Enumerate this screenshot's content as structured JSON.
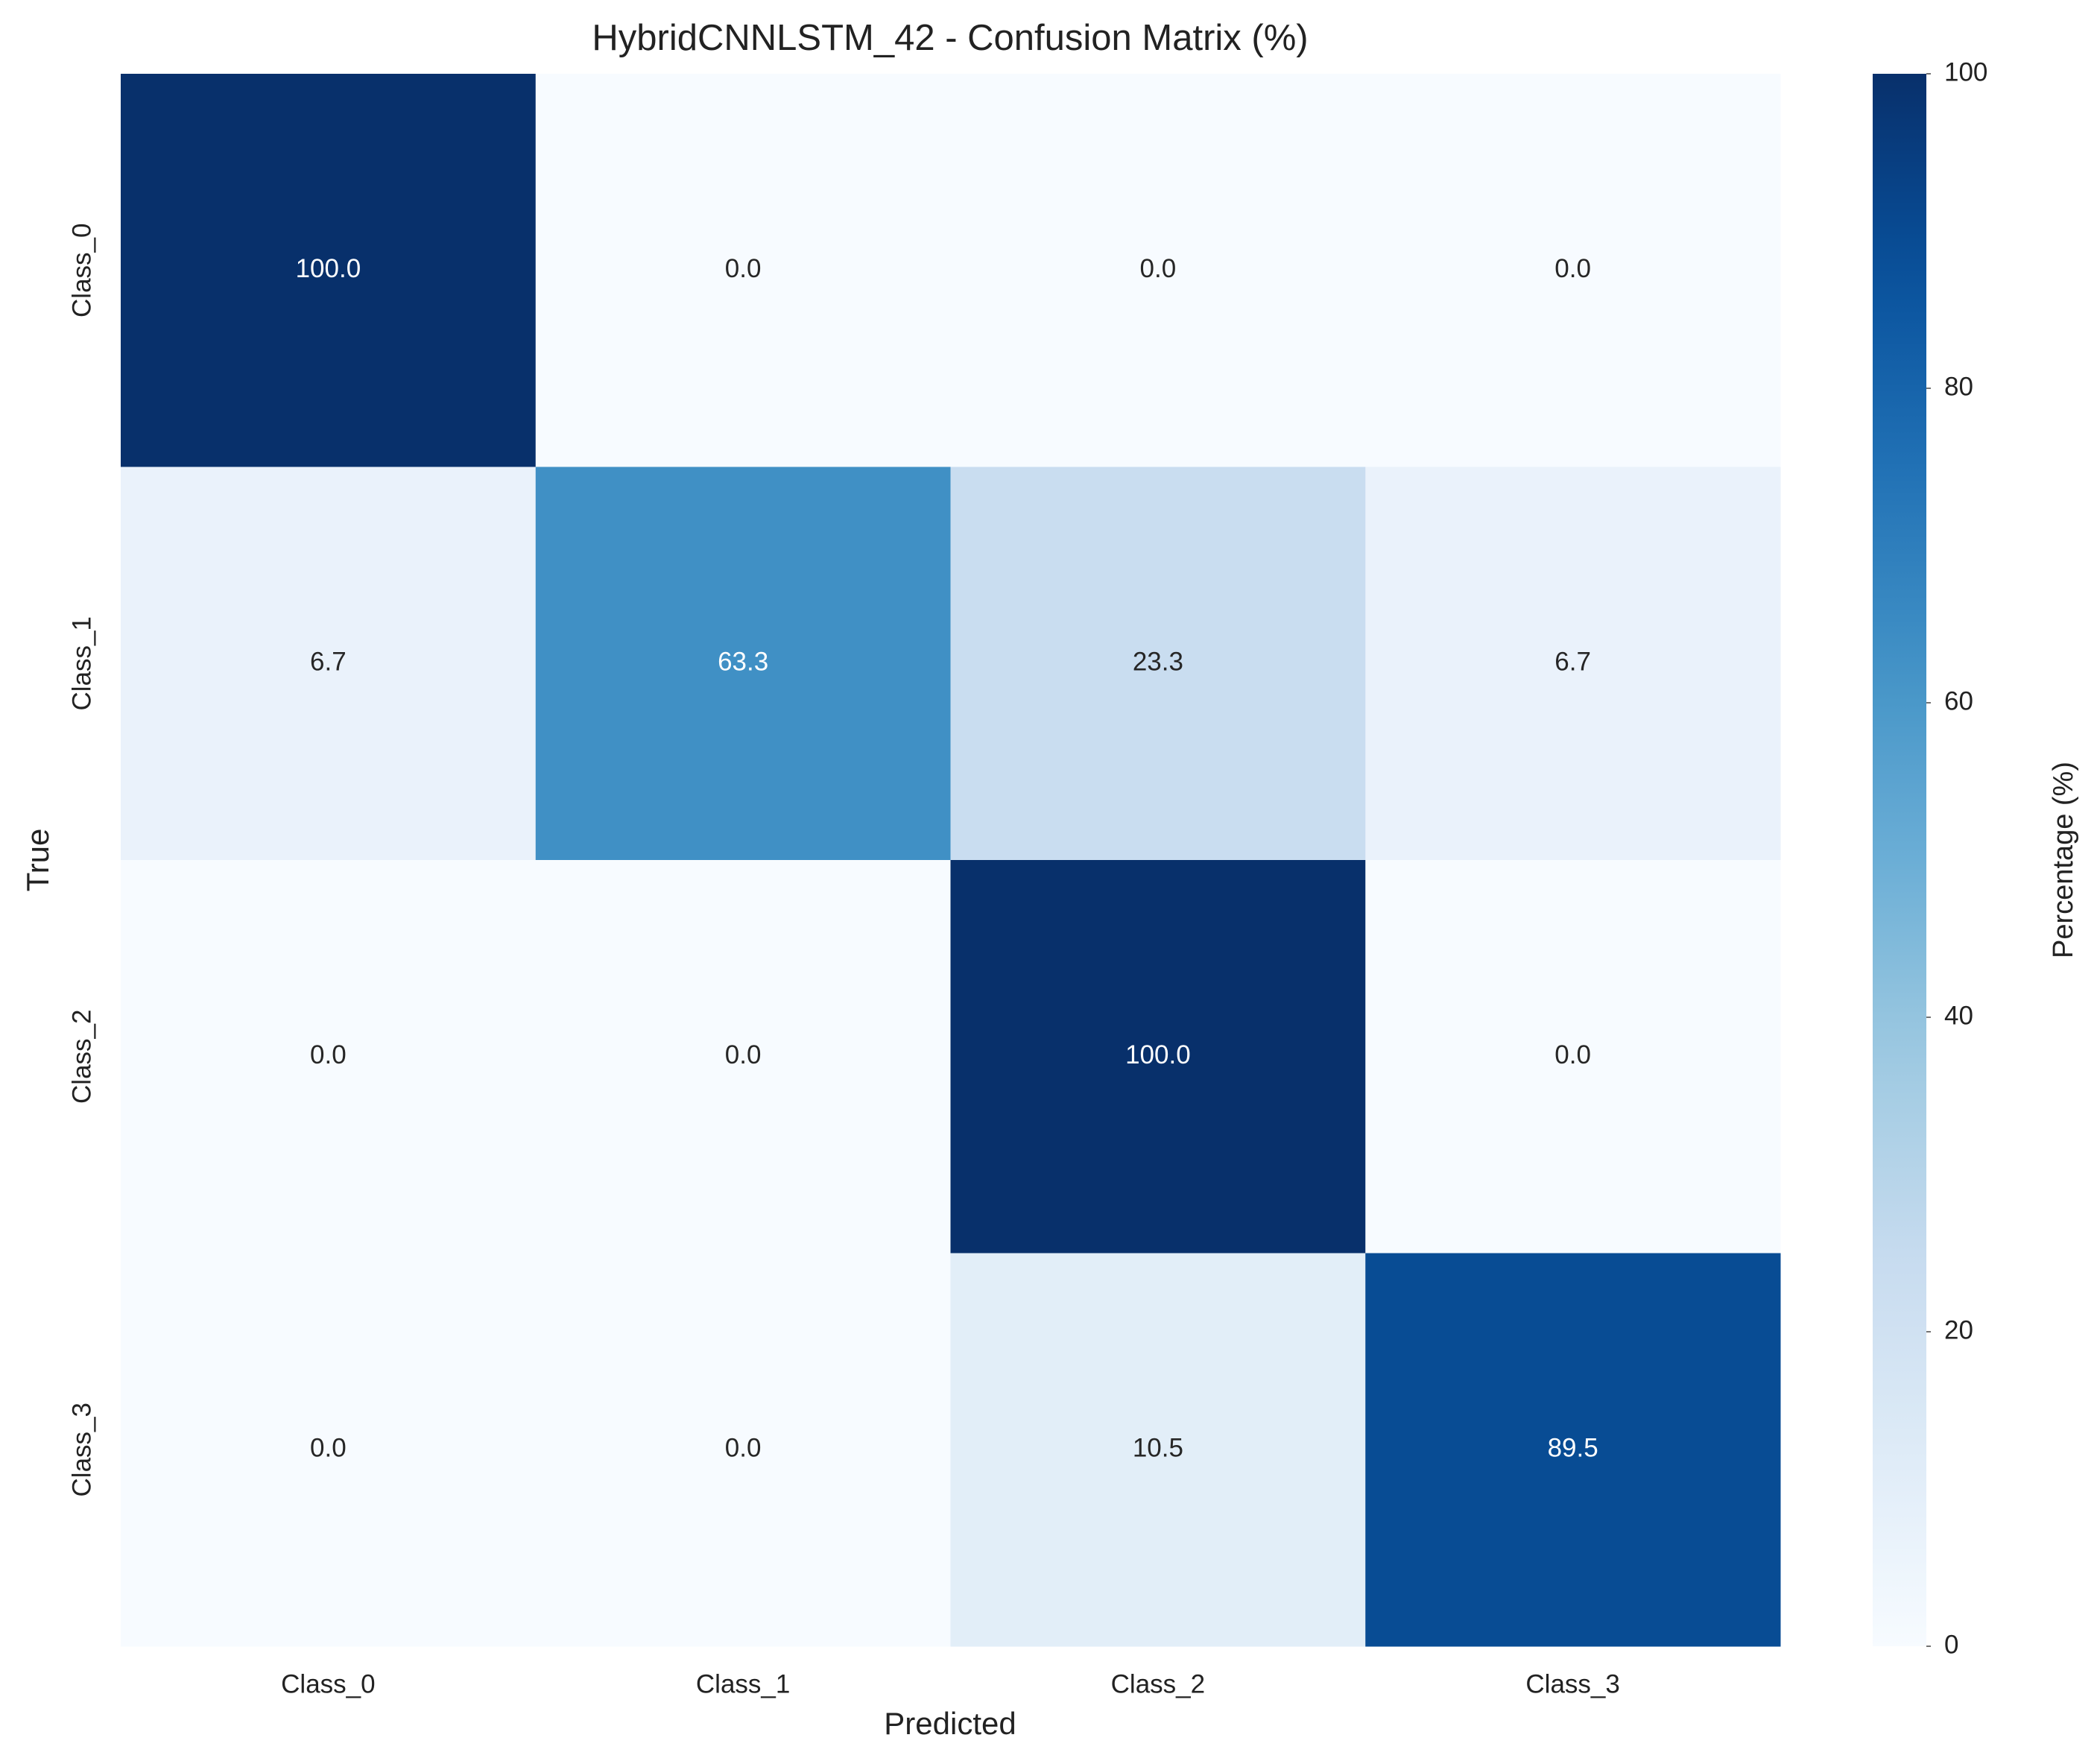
{
  "chart_data": {
    "type": "heatmap",
    "title": "HybridCNNLSTM_42 - Confusion Matrix (%)",
    "xlabel": "Predicted",
    "ylabel": "True",
    "x_categories": [
      "Class_0",
      "Class_1",
      "Class_2",
      "Class_3"
    ],
    "y_categories": [
      "Class_0",
      "Class_1",
      "Class_2",
      "Class_3"
    ],
    "values": [
      [
        100,
        0,
        0,
        0
      ],
      [
        6.7,
        63.3,
        23.3,
        6.7
      ],
      [
        0,
        0,
        100,
        0
      ],
      [
        0,
        0,
        10.5,
        89.5
      ]
    ],
    "value_labels": [
      [
        "100.0",
        "0.0",
        "0.0",
        "0.0"
      ],
      [
        "6.7",
        "63.3",
        "23.3",
        "6.7"
      ],
      [
        "0.0",
        "0.0",
        "100.0",
        "0.0"
      ],
      [
        "0.0",
        "0.0",
        "10.5",
        "89.5"
      ]
    ],
    "colormap": "Blues",
    "colorbar_label": "Percentage (%)",
    "zlim": [
      0,
      100
    ],
    "zticks": [
      0,
      20,
      40,
      60,
      80,
      100
    ]
  }
}
